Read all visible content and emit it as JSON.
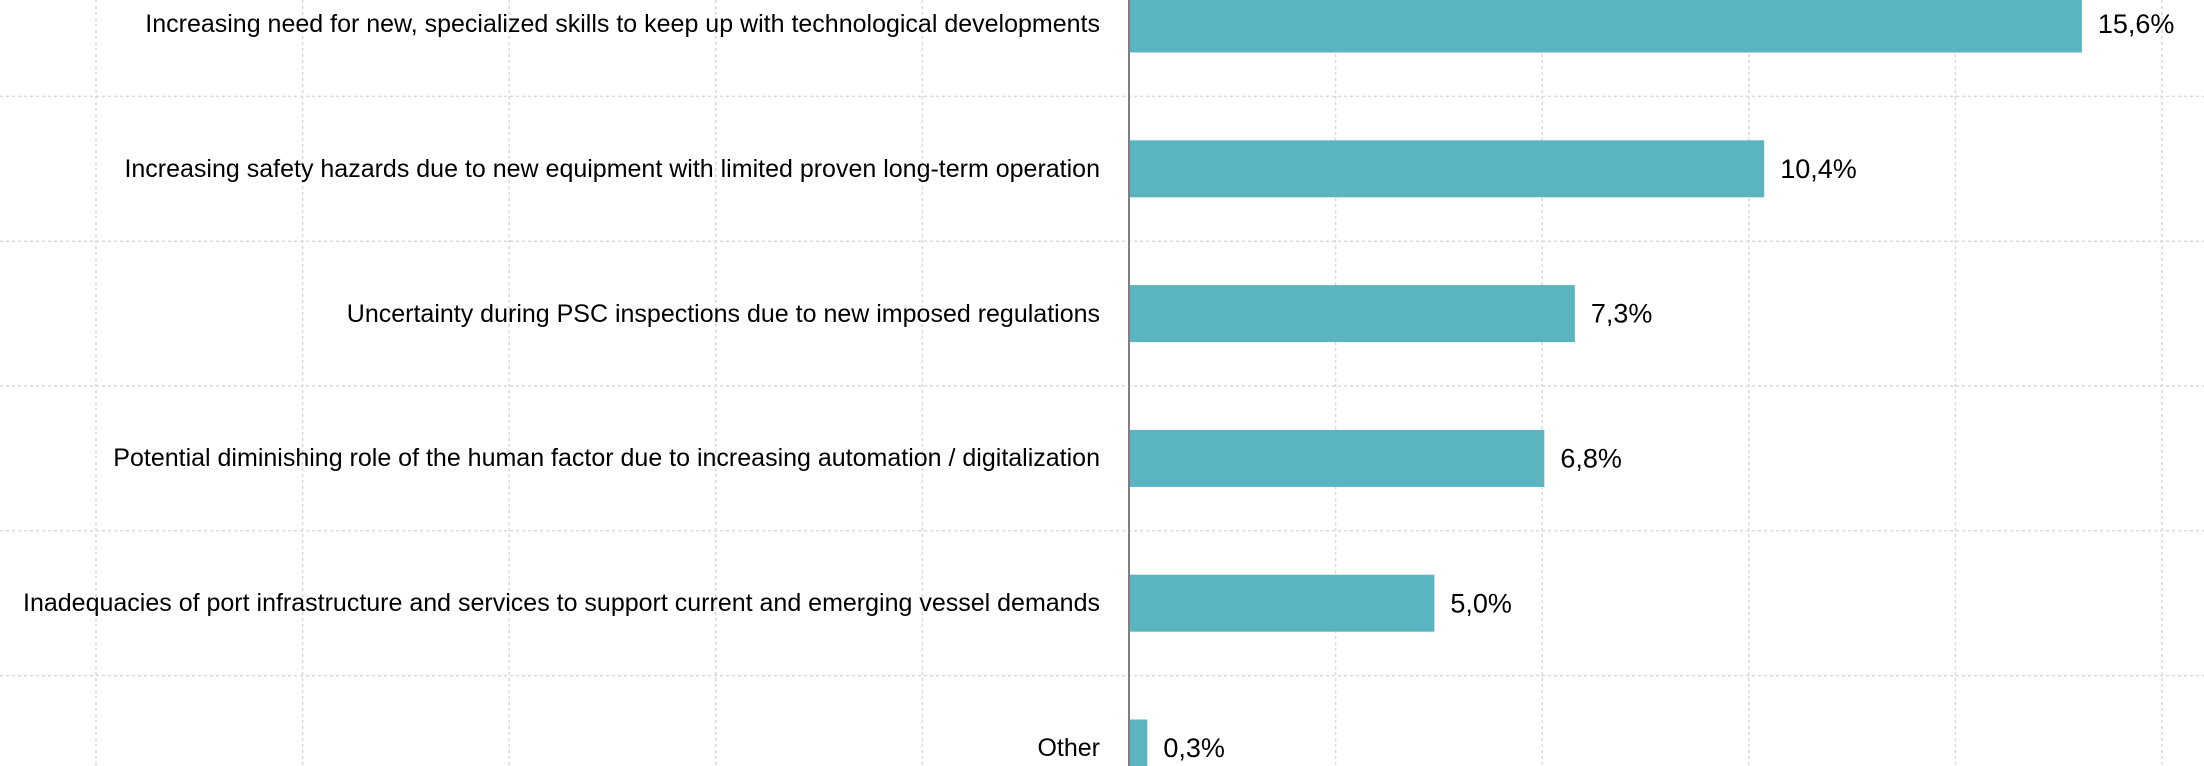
{
  "chart_data": {
    "type": "bar",
    "orientation": "horizontal",
    "categories": [
      "Increasing need for new, specialized skills to keep up with technological developments",
      "Increasing safety hazards due to new equipment with limited proven long-term operation",
      "Uncertainty during PSC inspections due to new imposed regulations",
      "Potential diminishing role of the human factor due to increasing automation / digitalization",
      "Inadequacies of port infrastructure and services to support current and emerging vessel demands",
      "Other"
    ],
    "values": [
      15.6,
      10.4,
      7.3,
      6.8,
      5.0,
      0.3
    ],
    "value_labels": [
      "15,6%",
      "10,4%",
      "7,3%",
      "6,8%",
      "5,0%",
      "0,3%"
    ],
    "color": "#5bb5c0",
    "xlim": [
      0,
      17.6
    ],
    "grid": true
  }
}
